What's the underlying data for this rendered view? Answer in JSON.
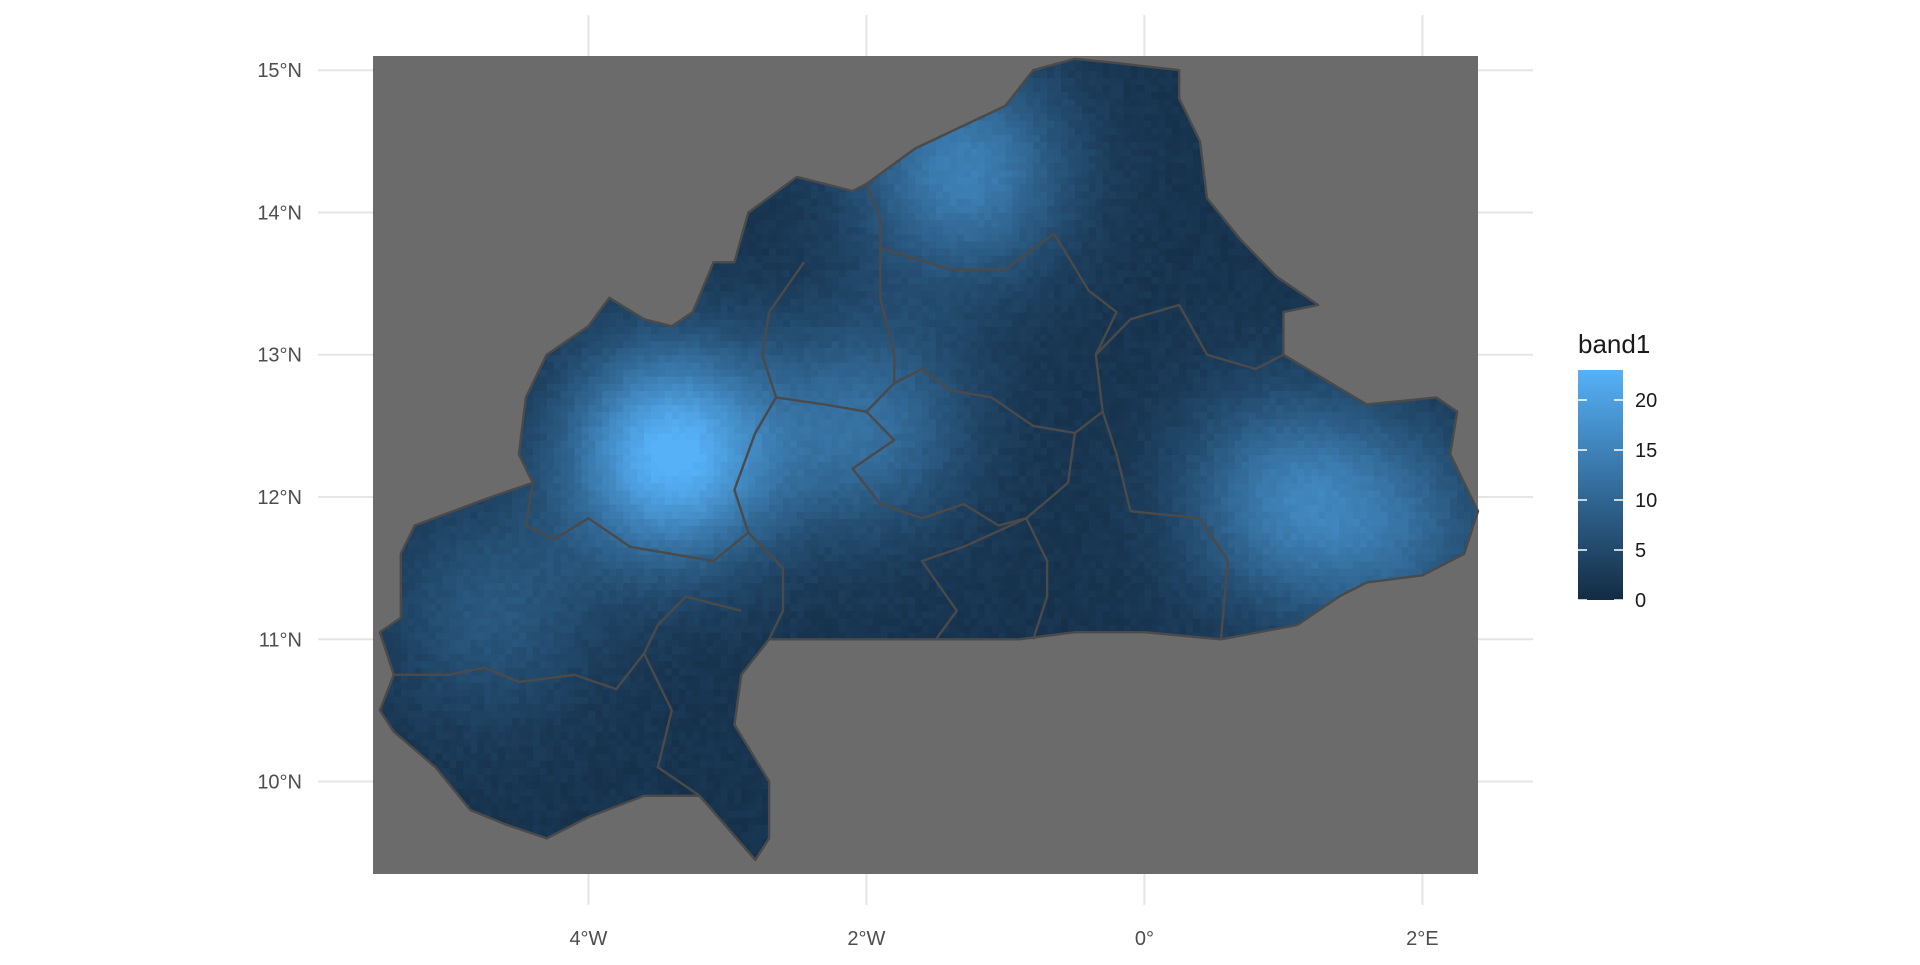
{
  "chart_data": {
    "type": "heatmap",
    "x_ticks": [
      {
        "lon": -4,
        "label": "4°W"
      },
      {
        "lon": -2,
        "label": "2°W"
      },
      {
        "lon": 0,
        "label": "0°"
      },
      {
        "lon": 2,
        "label": "2°E"
      }
    ],
    "y_ticks": [
      {
        "lat": 15,
        "label": "15°N"
      },
      {
        "lat": 14,
        "label": "14°N"
      },
      {
        "lat": 13,
        "label": "13°N"
      },
      {
        "lat": 12,
        "label": "12°N"
      },
      {
        "lat": 11,
        "label": "11°N"
      },
      {
        "lat": 10,
        "label": "10°N"
      }
    ],
    "xlim": [
      -5.55,
      2.4
    ],
    "ylim": [
      9.35,
      15.1
    ],
    "grid": true,
    "legend": {
      "title": "band1",
      "placement": "right",
      "range": [
        0,
        23
      ],
      "ticks": [
        {
          "value": 0,
          "label": "0"
        },
        {
          "value": 5,
          "label": "5"
        },
        {
          "value": 10,
          "label": "10"
        },
        {
          "value": 15,
          "label": "15"
        },
        {
          "value": 20,
          "label": "20"
        }
      ],
      "color_low": "#132B43",
      "color_high": "#56B1F7"
    },
    "panel_color": "#6b6b6b",
    "boundary_color": "#4a4a4a",
    "hotspots": [
      {
        "lon": -3.4,
        "lat": 12.3,
        "amp": 22
      },
      {
        "lon": -2.0,
        "lat": 12.5,
        "amp": 10
      },
      {
        "lon": -1.3,
        "lat": 14.3,
        "amp": 13
      },
      {
        "lon": 1.0,
        "lat": 12.0,
        "amp": 11
      },
      {
        "lon": 1.8,
        "lat": 11.8,
        "amp": 8
      },
      {
        "lon": -4.7,
        "lat": 11.2,
        "amp": 6
      }
    ],
    "country_outline": [
      [
        -0.5,
        15.08
      ],
      [
        -0.2,
        15.05
      ],
      [
        0.25,
        15.0
      ],
      [
        0.25,
        14.8
      ],
      [
        0.4,
        14.5
      ],
      [
        0.45,
        14.1
      ],
      [
        0.7,
        13.8
      ],
      [
        0.95,
        13.55
      ],
      [
        1.25,
        13.35
      ],
      [
        1.0,
        13.3
      ],
      [
        1.0,
        13.0
      ],
      [
        1.6,
        12.65
      ],
      [
        2.1,
        12.7
      ],
      [
        2.25,
        12.6
      ],
      [
        2.2,
        12.3
      ],
      [
        2.4,
        11.9
      ],
      [
        2.3,
        11.6
      ],
      [
        2.0,
        11.45
      ],
      [
        1.6,
        11.4
      ],
      [
        1.4,
        11.3
      ],
      [
        1.1,
        11.1
      ],
      [
        0.55,
        11.0
      ],
      [
        0.0,
        11.05
      ],
      [
        -0.5,
        11.05
      ],
      [
        -0.9,
        11.0
      ],
      [
        -2.7,
        11.0
      ],
      [
        -2.9,
        10.75
      ],
      [
        -2.95,
        10.4
      ],
      [
        -2.7,
        10.0
      ],
      [
        -2.7,
        9.6
      ],
      [
        -2.8,
        9.45
      ],
      [
        -3.2,
        9.9
      ],
      [
        -3.6,
        9.9
      ],
      [
        -4.0,
        9.75
      ],
      [
        -4.3,
        9.6
      ],
      [
        -4.6,
        9.7
      ],
      [
        -4.85,
        9.8
      ],
      [
        -5.1,
        10.1
      ],
      [
        -5.4,
        10.35
      ],
      [
        -5.5,
        10.5
      ],
      [
        -5.4,
        10.75
      ],
      [
        -5.5,
        11.05
      ],
      [
        -5.35,
        11.15
      ],
      [
        -5.35,
        11.6
      ],
      [
        -5.25,
        11.8
      ],
      [
        -4.7,
        12.0
      ],
      [
        -4.4,
        12.1
      ],
      [
        -4.5,
        12.3
      ],
      [
        -4.45,
        12.7
      ],
      [
        -4.3,
        13.0
      ],
      [
        -4.0,
        13.2
      ],
      [
        -3.85,
        13.4
      ],
      [
        -3.6,
        13.25
      ],
      [
        -3.4,
        13.2
      ],
      [
        -3.25,
        13.3
      ],
      [
        -3.1,
        13.65
      ],
      [
        -2.95,
        13.65
      ],
      [
        -2.85,
        14.0
      ],
      [
        -2.5,
        14.25
      ],
      [
        -2.1,
        14.15
      ],
      [
        -2.0,
        14.2
      ],
      [
        -1.65,
        14.45
      ],
      [
        -1.0,
        14.75
      ],
      [
        -0.8,
        15.0
      ]
    ],
    "region_lines": [
      [
        [
          -2.0,
          14.2
        ],
        [
          -1.9,
          13.95
        ],
        [
          -1.9,
          13.4
        ],
        [
          -1.8,
          13.0
        ],
        [
          -1.8,
          12.8
        ],
        [
          -1.6,
          12.9
        ],
        [
          -1.4,
          12.75
        ],
        [
          -1.1,
          12.7
        ],
        [
          -0.8,
          12.5
        ],
        [
          -0.5,
          12.45
        ],
        [
          -0.3,
          12.6
        ],
        [
          -0.35,
          13.0
        ],
        [
          -0.2,
          13.3
        ],
        [
          -0.4,
          13.45
        ],
        [
          -0.65,
          13.85
        ],
        [
          -1.0,
          13.6
        ],
        [
          -1.4,
          13.6
        ],
        [
          -1.9,
          13.75
        ]
      ],
      [
        [
          -0.35,
          13.0
        ],
        [
          -0.1,
          13.25
        ],
        [
          0.25,
          13.35
        ],
        [
          0.45,
          13.0
        ],
        [
          0.8,
          12.9
        ],
        [
          1.0,
          13.0
        ]
      ],
      [
        [
          -0.3,
          12.6
        ],
        [
          -0.2,
          12.3
        ],
        [
          -0.1,
          11.9
        ],
        [
          0.4,
          11.85
        ],
        [
          0.6,
          11.55
        ],
        [
          0.55,
          11.0
        ]
      ],
      [
        [
          -0.5,
          12.45
        ],
        [
          -0.55,
          12.1
        ],
        [
          -0.85,
          11.85
        ],
        [
          -0.7,
          11.55
        ],
        [
          -0.7,
          11.3
        ],
        [
          -0.8,
          11.0
        ]
      ],
      [
        [
          -0.85,
          11.85
        ],
        [
          -1.3,
          11.65
        ],
        [
          -1.6,
          11.55
        ],
        [
          -1.35,
          11.2
        ],
        [
          -1.5,
          11.0
        ]
      ],
      [
        [
          -1.8,
          12.8
        ],
        [
          -2.0,
          12.6
        ],
        [
          -1.8,
          12.4
        ],
        [
          -2.1,
          12.2
        ],
        [
          -1.9,
          11.95
        ],
        [
          -1.6,
          11.85
        ],
        [
          -1.3,
          11.95
        ],
        [
          -1.05,
          11.8
        ],
        [
          -0.85,
          11.85
        ]
      ],
      [
        [
          -2.45,
          13.65
        ],
        [
          -2.7,
          13.3
        ],
        [
          -2.75,
          13.0
        ],
        [
          -2.65,
          12.7
        ],
        [
          -2.8,
          12.45
        ],
        [
          -2.95,
          12.05
        ],
        [
          -2.85,
          11.75
        ],
        [
          -2.6,
          11.5
        ],
        [
          -2.6,
          11.2
        ],
        [
          -2.7,
          11.0
        ]
      ],
      [
        [
          -2.65,
          12.7
        ],
        [
          -2.3,
          12.65
        ],
        [
          -2.0,
          12.6
        ]
      ],
      [
        [
          -2.85,
          11.75
        ],
        [
          -3.1,
          11.55
        ],
        [
          -3.4,
          11.6
        ],
        [
          -3.7,
          11.65
        ],
        [
          -4.0,
          11.85
        ],
        [
          -4.25,
          11.7
        ],
        [
          -4.45,
          11.8
        ],
        [
          -4.4,
          12.1
        ]
      ],
      [
        [
          -2.9,
          11.2
        ],
        [
          -3.3,
          11.3
        ],
        [
          -3.5,
          11.1
        ],
        [
          -3.6,
          10.9
        ],
        [
          -3.8,
          10.65
        ],
        [
          -4.1,
          10.75
        ],
        [
          -4.5,
          10.7
        ],
        [
          -4.75,
          10.8
        ],
        [
          -5.0,
          10.75
        ],
        [
          -5.4,
          10.75
        ]
      ],
      [
        [
          -3.6,
          10.9
        ],
        [
          -3.4,
          10.5
        ],
        [
          -3.5,
          10.1
        ],
        [
          -3.2,
          9.9
        ]
      ]
    ]
  }
}
